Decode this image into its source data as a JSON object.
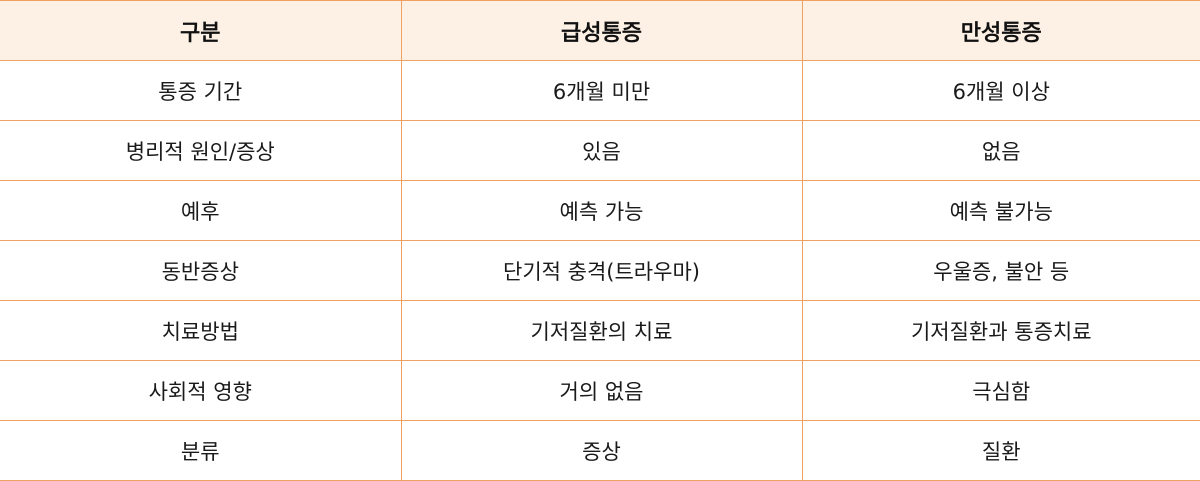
{
  "table": {
    "headers": [
      "구분",
      "급성통증",
      "만성통증"
    ],
    "rows": [
      [
        "통증 기간",
        "6개월 미만",
        "6개월 이상"
      ],
      [
        "병리적 원인/증상",
        "있음",
        "없음"
      ],
      [
        "예후",
        "예측 가능",
        "예측 불가능"
      ],
      [
        "동반증상",
        "단기적 충격(트라우마)",
        "우울증, 불안 등"
      ],
      [
        "치료방법",
        "기저질환의 치료",
        "기저질환과 통증치료"
      ],
      [
        "사회적 영향",
        "거의 없음",
        "극심함"
      ],
      [
        "분류",
        "증상",
        "질환"
      ]
    ]
  },
  "colors": {
    "border": "#f0a060",
    "header_background": "#fdf1e6",
    "text": "#1a1a1a"
  }
}
